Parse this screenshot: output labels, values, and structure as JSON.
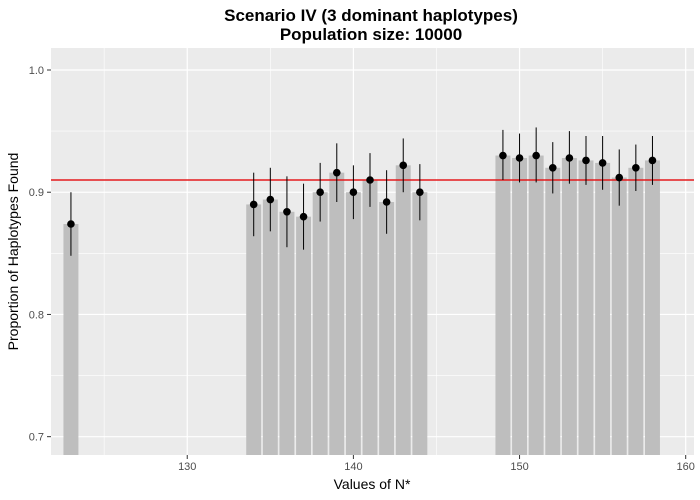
{
  "chart_data": {
    "type": "bar",
    "title": "Scenario IV (3 dominant haplotypes)",
    "subtitle": "Population size: 10000",
    "xlabel": "Values of N*",
    "ylabel": "Proportion of Haplotypes Found",
    "xlim": [
      121.8,
      160.5
    ],
    "ylim": [
      0.685,
      1.018
    ],
    "xticks": [
      130,
      140,
      150,
      160
    ],
    "yticks": [
      0.7,
      0.8,
      0.9,
      1.0
    ],
    "ytick_labels": [
      "0.7",
      "0.8",
      "0.9",
      "1.0"
    ],
    "grid": true,
    "reference_line": {
      "y": 0.91,
      "color": "#e41a1c"
    },
    "colors": {
      "panel": "#ebebeb",
      "grid": "#ffffff",
      "bar": "#bebebe",
      "point": "#000000"
    },
    "points": [
      {
        "x": 123,
        "y": 0.874,
        "low": 0.848,
        "high": 0.9
      },
      {
        "x": 134,
        "y": 0.89,
        "low": 0.864,
        "high": 0.916
      },
      {
        "x": 135,
        "y": 0.894,
        "low": 0.868,
        "high": 0.92
      },
      {
        "x": 136,
        "y": 0.884,
        "low": 0.855,
        "high": 0.913
      },
      {
        "x": 137,
        "y": 0.88,
        "low": 0.853,
        "high": 0.907
      },
      {
        "x": 138,
        "y": 0.9,
        "low": 0.876,
        "high": 0.924
      },
      {
        "x": 139,
        "y": 0.916,
        "low": 0.892,
        "high": 0.94
      },
      {
        "x": 140,
        "y": 0.9,
        "low": 0.878,
        "high": 0.922
      },
      {
        "x": 141,
        "y": 0.91,
        "low": 0.888,
        "high": 0.932
      },
      {
        "x": 142,
        "y": 0.892,
        "low": 0.866,
        "high": 0.918
      },
      {
        "x": 143,
        "y": 0.922,
        "low": 0.9,
        "high": 0.944
      },
      {
        "x": 144,
        "y": 0.9,
        "low": 0.877,
        "high": 0.923
      },
      {
        "x": 149,
        "y": 0.93,
        "low": 0.91,
        "high": 0.951
      },
      {
        "x": 150,
        "y": 0.928,
        "low": 0.908,
        "high": 0.948
      },
      {
        "x": 151,
        "y": 0.93,
        "low": 0.908,
        "high": 0.953
      },
      {
        "x": 152,
        "y": 0.92,
        "low": 0.899,
        "high": 0.941
      },
      {
        "x": 153,
        "y": 0.928,
        "low": 0.907,
        "high": 0.95
      },
      {
        "x": 154,
        "y": 0.926,
        "low": 0.906,
        "high": 0.946
      },
      {
        "x": 155,
        "y": 0.924,
        "low": 0.902,
        "high": 0.946
      },
      {
        "x": 156,
        "y": 0.912,
        "low": 0.889,
        "high": 0.935
      },
      {
        "x": 157,
        "y": 0.92,
        "low": 0.901,
        "high": 0.939
      },
      {
        "x": 158,
        "y": 0.926,
        "low": 0.906,
        "high": 0.946
      }
    ]
  }
}
